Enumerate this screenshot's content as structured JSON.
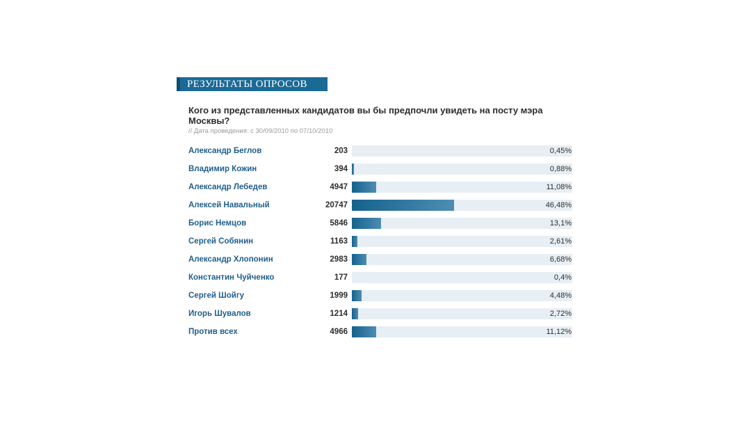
{
  "header": {
    "title": "РЕЗУЛЬТАТЫ ОПРОСОВ",
    "accent_color": "#1b6a96"
  },
  "question": "Кого из представленных кандидатов вы бы предпочли увидеть на посту мэра Москвы?",
  "poll_date": "// Дата проведения: с 30/09/2010 по 07/10/2010",
  "chart_data": {
    "type": "bar",
    "orientation": "horizontal",
    "title": "Кого из представленных кандидатов вы бы предпочли увидеть на посту мэра Москвы?",
    "categories": [
      "Александр Беглов",
      "Владимир Кожин",
      "Александр Лебедев",
      "Алексей Навальный",
      "Борис Немцов",
      "Сергей Собянин",
      "Александр Хлопонин",
      "Константин Чуйченко",
      "Сергей Шойгу",
      "Игорь Шувалов",
      "Против всех"
    ],
    "votes": [
      203,
      394,
      4947,
      20747,
      5846,
      1163,
      2983,
      177,
      1999,
      1214,
      4966
    ],
    "percent_labels": [
      "0,45%",
      "0,88%",
      "11,08%",
      "46,48%",
      "13,1%",
      "2,61%",
      "6,68%",
      "0,4%",
      "4,48%",
      "2,72%",
      "11,12%"
    ],
    "values": [
      0.45,
      0.88,
      11.08,
      46.48,
      13.1,
      2.61,
      6.68,
      0.4,
      4.48,
      2.72,
      11.12
    ],
    "xlim": [
      0,
      100
    ],
    "bar_color": "#1b6a96",
    "track_color": "#e7eff5"
  }
}
